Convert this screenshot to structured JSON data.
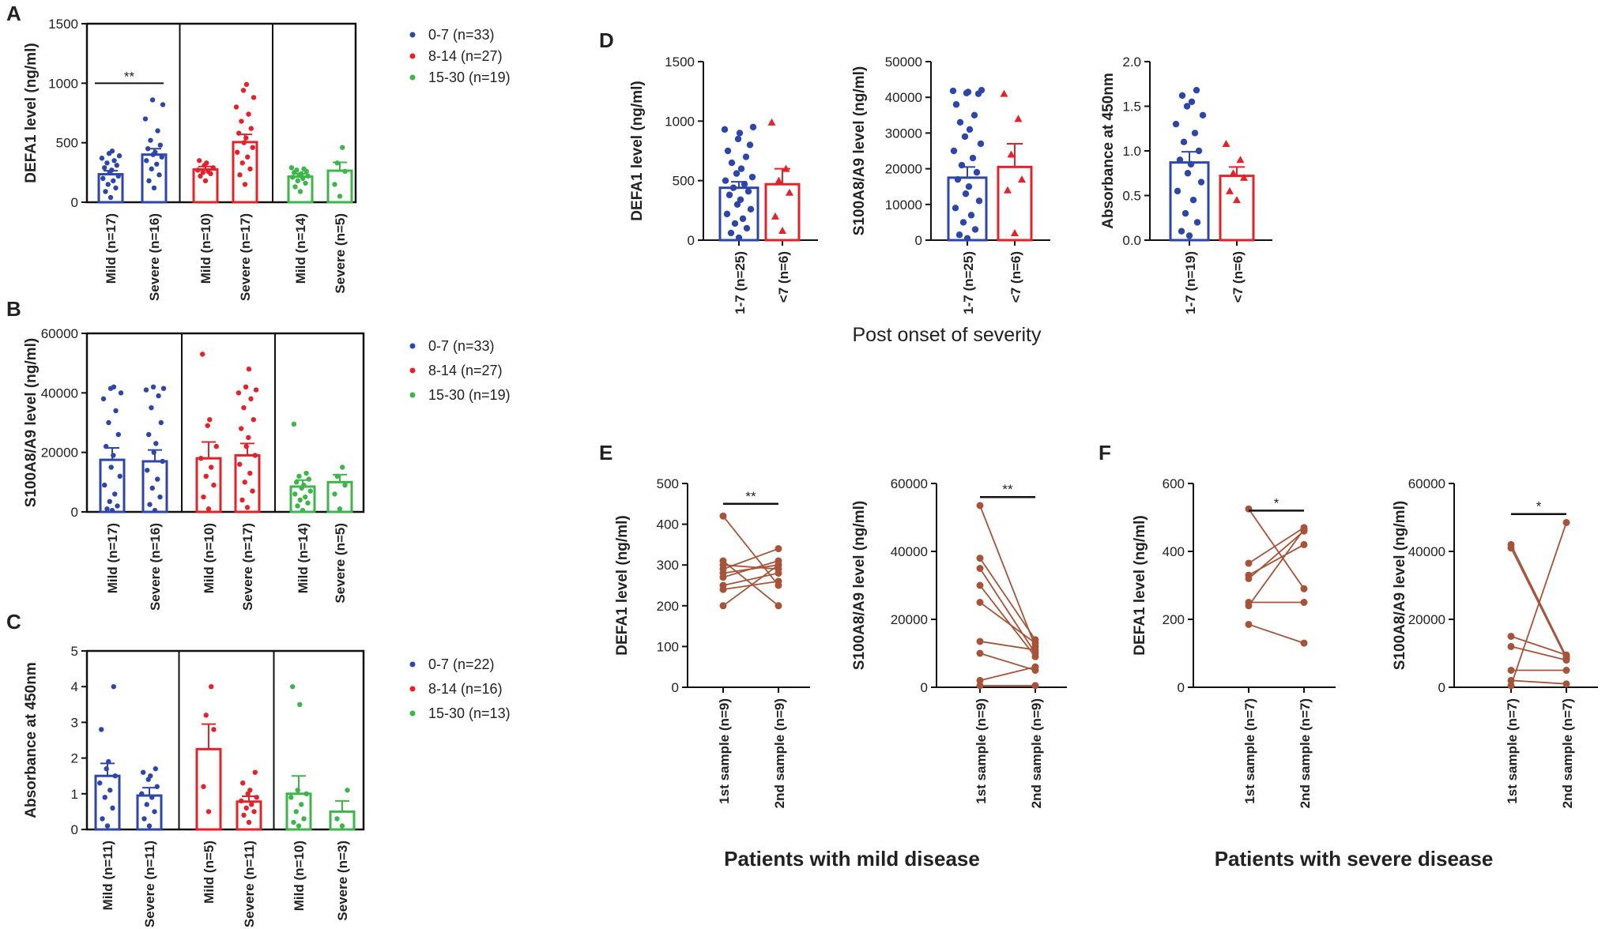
{
  "colors": {
    "blue": "#2e46a8",
    "red": "#e2232a",
    "green": "#3db54a",
    "brown": "#a5543a",
    "axis": "#111111"
  },
  "legend_groups": [
    "0-7 (n=33)",
    "8-14 (n=27)",
    "15-30 (n=19)"
  ],
  "legend_groups_C": [
    "0-7 (n=22)",
    "8-14 (n=16)",
    "15-30 (n=13)"
  ],
  "bottom_labels": {
    "mild": "Patients with mild disease",
    "severe": "Patients with severe disease"
  },
  "chart_data": [
    {
      "id": "A",
      "type": "bar",
      "panel_label": "A",
      "title": "",
      "xlabel": "",
      "ylabel": "DEFA1 level (ng/ml)",
      "ylim": [
        0,
        1500
      ],
      "yticks": [
        0,
        500,
        1000,
        1500
      ],
      "ytick_labels": [
        "0",
        "500",
        "1000",
        "1500"
      ],
      "categories": [
        "Mild (n=17)",
        "Severe (n=16)",
        "Mild (n=10)",
        "Severe (n=17)",
        "Mild (n=14)",
        "Severe (n=5)"
      ],
      "series_by_category": [
        "0-7",
        "0-7",
        "8-14",
        "8-14",
        "15-30",
        "15-30"
      ],
      "values": [
        235,
        400,
        275,
        505,
        215,
        265
      ],
      "sem": [
        30,
        50,
        25,
        65,
        25,
        70
      ],
      "points": [
        [
          40,
          90,
          120,
          150,
          180,
          200,
          220,
          250,
          270,
          290,
          310,
          330,
          350,
          370,
          390,
          410,
          430
        ],
        [
          120,
          180,
          230,
          280,
          320,
          350,
          380,
          400,
          420,
          450,
          480,
          520,
          600,
          700,
          820,
          860
        ],
        [
          180,
          220,
          240,
          250,
          260,
          270,
          290,
          310,
          330,
          350
        ],
        [
          150,
          230,
          280,
          330,
          380,
          420,
          460,
          500,
          540,
          580,
          620,
          680,
          740,
          800,
          880,
          940,
          990
        ],
        [
          90,
          130,
          160,
          180,
          200,
          210,
          220,
          230,
          240,
          250,
          260,
          270,
          280,
          290
        ],
        [
          50,
          150,
          260,
          330,
          460
        ]
      ],
      "significance": [
        {
          "from": 0,
          "to": 1,
          "label": "**",
          "value": 1000
        }
      ],
      "legend": [
        "0-7 (n=33)",
        "8-14 (n=27)",
        "15-30 (n=19)"
      ]
    },
    {
      "id": "B",
      "type": "bar",
      "panel_label": "B",
      "title": "",
      "xlabel": "",
      "ylabel": "S100A8/A9 level (ng/ml)",
      "ylim": [
        0,
        60000
      ],
      "yticks": [
        0,
        20000,
        40000,
        60000
      ],
      "ytick_labels": [
        "0",
        "20000",
        "40000",
        "60000"
      ],
      "categories": [
        "Mild (n=17)",
        "Severe (n=16)",
        "Mild (n=10)",
        "Severe (n=17)",
        "Mild (n=14)",
        "Severe (n=5)"
      ],
      "series_by_category": [
        "0-7",
        "0-7",
        "8-14",
        "8-14",
        "15-30",
        "15-30"
      ],
      "values": [
        17500,
        17000,
        18000,
        19000,
        8500,
        10000
      ],
      "sem": [
        4000,
        3800,
        5500,
        4000,
        2200,
        2500
      ],
      "points": [
        [
          500,
          1000,
          2000,
          3500,
          6000,
          9000,
          12000,
          15000,
          19000,
          22000,
          26000,
          30000,
          34000,
          38000,
          40000,
          41500,
          42000
        ],
        [
          500,
          2500,
          5000,
          8000,
          11000,
          14000,
          17000,
          20000,
          23000,
          26000,
          30000,
          35000,
          39000,
          41000,
          41500,
          42000
        ],
        [
          1000,
          5000,
          9000,
          12000,
          15000,
          18000,
          22000,
          29000,
          31000,
          53000
        ],
        [
          1500,
          4000,
          7000,
          10000,
          13000,
          16000,
          19000,
          22000,
          25000,
          28000,
          31000,
          35000,
          38000,
          40000,
          41000,
          42000,
          48000
        ],
        [
          500,
          2000,
          3000,
          4000,
          5000,
          6000,
          7000,
          8000,
          9000,
          10000,
          11000,
          12000,
          13000,
          29500
        ],
        [
          1000,
          6000,
          9000,
          12000,
          15000
        ]
      ],
      "significance": [],
      "legend": [
        "0-7 (n=33)",
        "8-14 (n=27)",
        "15-30 (n=19)"
      ]
    },
    {
      "id": "C",
      "type": "bar",
      "panel_label": "C",
      "title": "",
      "xlabel": "",
      "ylabel": "Absorbance at 450nm",
      "ylim": [
        0,
        5
      ],
      "yticks": [
        0,
        1,
        2,
        3,
        4,
        5
      ],
      "ytick_labels": [
        "0",
        "1",
        "2",
        "3",
        "4",
        "5"
      ],
      "categories": [
        "Mild (n=11)",
        "Severe (n=11)",
        "Mild (n=5)",
        "Severe (n=11)",
        "Mild (n=10)",
        "Severe (n=3)"
      ],
      "series_by_category": [
        "0-7",
        "0-7",
        "8-14",
        "8-14",
        "15-30",
        "15-30"
      ],
      "values": [
        1.5,
        0.95,
        2.25,
        0.78,
        1.0,
        0.5
      ],
      "sem": [
        0.35,
        0.22,
        0.7,
        0.15,
        0.5,
        0.3
      ],
      "points": [
        [
          0.1,
          0.3,
          0.6,
          0.9,
          1.1,
          1.3,
          1.5,
          1.7,
          1.9,
          2.8,
          4.0
        ],
        [
          0.1,
          0.3,
          0.5,
          0.7,
          0.9,
          1.0,
          1.2,
          1.4,
          1.5,
          1.6,
          1.7
        ],
        [
          0.5,
          1.2,
          2.8,
          3.2,
          4.0
        ],
        [
          0.2,
          0.4,
          0.5,
          0.6,
          0.7,
          0.8,
          0.9,
          1.0,
          1.1,
          1.3,
          1.6
        ],
        [
          0.1,
          0.2,
          0.3,
          0.5,
          0.7,
          0.9,
          1.0,
          1.1,
          3.5,
          4.0
        ],
        [
          0.1,
          0.3,
          1.1
        ]
      ],
      "significance": [],
      "legend": [
        "0-7 (n=22)",
        "8-14 (n=16)",
        "15-30 (n=13)"
      ]
    },
    {
      "id": "D1",
      "type": "bar",
      "panel_label": "D",
      "title": "",
      "xlabel": "Post onset of severity",
      "ylabel": "DEFA1 level (ng/ml)",
      "ylim": [
        0,
        1500
      ],
      "yticks": [
        0,
        500,
        1000,
        1500
      ],
      "ytick_labels": [
        "0",
        "500",
        "1000",
        "1500"
      ],
      "categories": [
        "1-7 (n=25)",
        "<7 (n=6)"
      ],
      "values": [
        440,
        470
      ],
      "sem": [
        50,
        130
      ],
      "points": [
        [
          20,
          60,
          100,
          140,
          180,
          220,
          260,
          300,
          340,
          380,
          410,
          440,
          470,
          500,
          530,
          560,
          600,
          650,
          700,
          750,
          800,
          850,
          900,
          930,
          950
        ],
        [
          80,
          200,
          400,
          500,
          600,
          990
        ]
      ]
    },
    {
      "id": "D2",
      "type": "bar",
      "title": "",
      "xlabel": "Post onset of severity",
      "ylabel": "S100A8/A9 level (ng/ml)",
      "ylim": [
        0,
        50000
      ],
      "yticks": [
        0,
        10000,
        20000,
        30000,
        40000,
        50000
      ],
      "ytick_labels": [
        "0",
        "10000",
        "20000",
        "30000",
        "40000",
        "50000"
      ],
      "categories": [
        "1-7 (n=25)",
        "<7 (n=6)"
      ],
      "values": [
        17500,
        20500
      ],
      "sem": [
        3000,
        6500
      ],
      "points": [
        [
          500,
          1500,
          3000,
          5000,
          7000,
          9000,
          11000,
          13000,
          15000,
          17000,
          19000,
          21000,
          23000,
          25000,
          27000,
          29000,
          31000,
          33000,
          35000,
          38000,
          41000,
          41200,
          41500,
          41800,
          42000
        ],
        [
          2000,
          14000,
          17000,
          24000,
          34000,
          41000
        ]
      ]
    },
    {
      "id": "D3",
      "type": "bar",
      "title": "",
      "xlabel": "Post onset of severity",
      "ylabel": "Absorbance at 450nm",
      "ylim": [
        0,
        2.0
      ],
      "yticks": [
        0,
        0.5,
        1.0,
        1.5,
        2.0
      ],
      "ytick_labels": [
        "0.0",
        "0.5",
        "1.0",
        "1.5",
        "2.0"
      ],
      "categories": [
        "1-7 (n=19)",
        "<7 (n=6)"
      ],
      "values": [
        0.87,
        0.72
      ],
      "sem": [
        0.12,
        0.1
      ],
      "points": [
        [
          0.05,
          0.1,
          0.2,
          0.3,
          0.45,
          0.55,
          0.65,
          0.75,
          0.85,
          0.9,
          1.0,
          1.1,
          1.2,
          1.3,
          1.4,
          1.5,
          1.55,
          1.62,
          1.68
        ],
        [
          0.45,
          0.55,
          0.7,
          0.75,
          0.9,
          1.08
        ]
      ]
    },
    {
      "id": "E1",
      "type": "line",
      "panel_label": "E",
      "title": "",
      "xlabel": "",
      "ylabel": "DEFA1 level (ng/ml)",
      "ylim": [
        0,
        500
      ],
      "yticks": [
        0,
        100,
        200,
        300,
        400,
        500
      ],
      "ytick_labels": [
        "0",
        "100",
        "200",
        "300",
        "400",
        "500"
      ],
      "categories": [
        "1st sample (n=9)",
        "2nd sample (n=9)"
      ],
      "pairs": [
        [
          420,
          250
        ],
        [
          310,
          200
        ],
        [
          300,
          290
        ],
        [
          290,
          340
        ],
        [
          280,
          300
        ],
        [
          270,
          310
        ],
        [
          250,
          280
        ],
        [
          240,
          260
        ],
        [
          200,
          300
        ]
      ],
      "significance": [
        {
          "label": "**",
          "value": 450
        }
      ]
    },
    {
      "id": "E2",
      "type": "line",
      "title": "",
      "xlabel": "",
      "ylabel": "S100A8/A9 level (ng/ml)",
      "ylim": [
        0,
        60000
      ],
      "yticks": [
        0,
        20000,
        40000,
        60000
      ],
      "ytick_labels": [
        "0",
        "20000",
        "40000",
        "60000"
      ],
      "categories": [
        "1st sample (n=9)",
        "2nd sample (n=9)"
      ],
      "pairs": [
        [
          53500,
          12000
        ],
        [
          38000,
          14000
        ],
        [
          35000,
          10000
        ],
        [
          30000,
          9000
        ],
        [
          25000,
          13000
        ],
        [
          13500,
          11000
        ],
        [
          10000,
          5000
        ],
        [
          2000,
          6000
        ],
        [
          500,
          500
        ]
      ],
      "significance": [
        {
          "label": "**",
          "value": 56000
        }
      ]
    },
    {
      "id": "F1",
      "type": "line",
      "panel_label": "F",
      "title": "",
      "xlabel": "",
      "ylabel": "DEFA1 level (ng/ml)",
      "ylim": [
        0,
        600
      ],
      "yticks": [
        0,
        200,
        400,
        600
      ],
      "ytick_labels": [
        "0",
        "200",
        "400",
        "600"
      ],
      "categories": [
        "1st sample (n=7)",
        "2nd sample (n=7)"
      ],
      "pairs": [
        [
          525,
          290
        ],
        [
          365,
          470
        ],
        [
          330,
          420
        ],
        [
          320,
          460
        ],
        [
          250,
          250
        ],
        [
          240,
          465
        ],
        [
          185,
          130
        ]
      ],
      "significance": [
        {
          "label": "*",
          "value": 520
        }
      ]
    },
    {
      "id": "F2",
      "type": "line",
      "title": "",
      "xlabel": "",
      "ylabel": "S100A8/A9 level (ng/ml)",
      "ylim": [
        0,
        60000
      ],
      "yticks": [
        0,
        20000,
        40000,
        60000
      ],
      "ytick_labels": [
        "0",
        "20000",
        "40000",
        "60000"
      ],
      "categories": [
        "1st sample (n=7)",
        "2nd sample (n=7)"
      ],
      "pairs": [
        [
          42000,
          9000
        ],
        [
          41000,
          8500
        ],
        [
          15000,
          9500
        ],
        [
          12000,
          8000
        ],
        [
          5000,
          5000
        ],
        [
          2000,
          1000
        ],
        [
          500,
          48500
        ]
      ],
      "significance": [
        {
          "label": "*",
          "value": 51000
        }
      ]
    }
  ]
}
